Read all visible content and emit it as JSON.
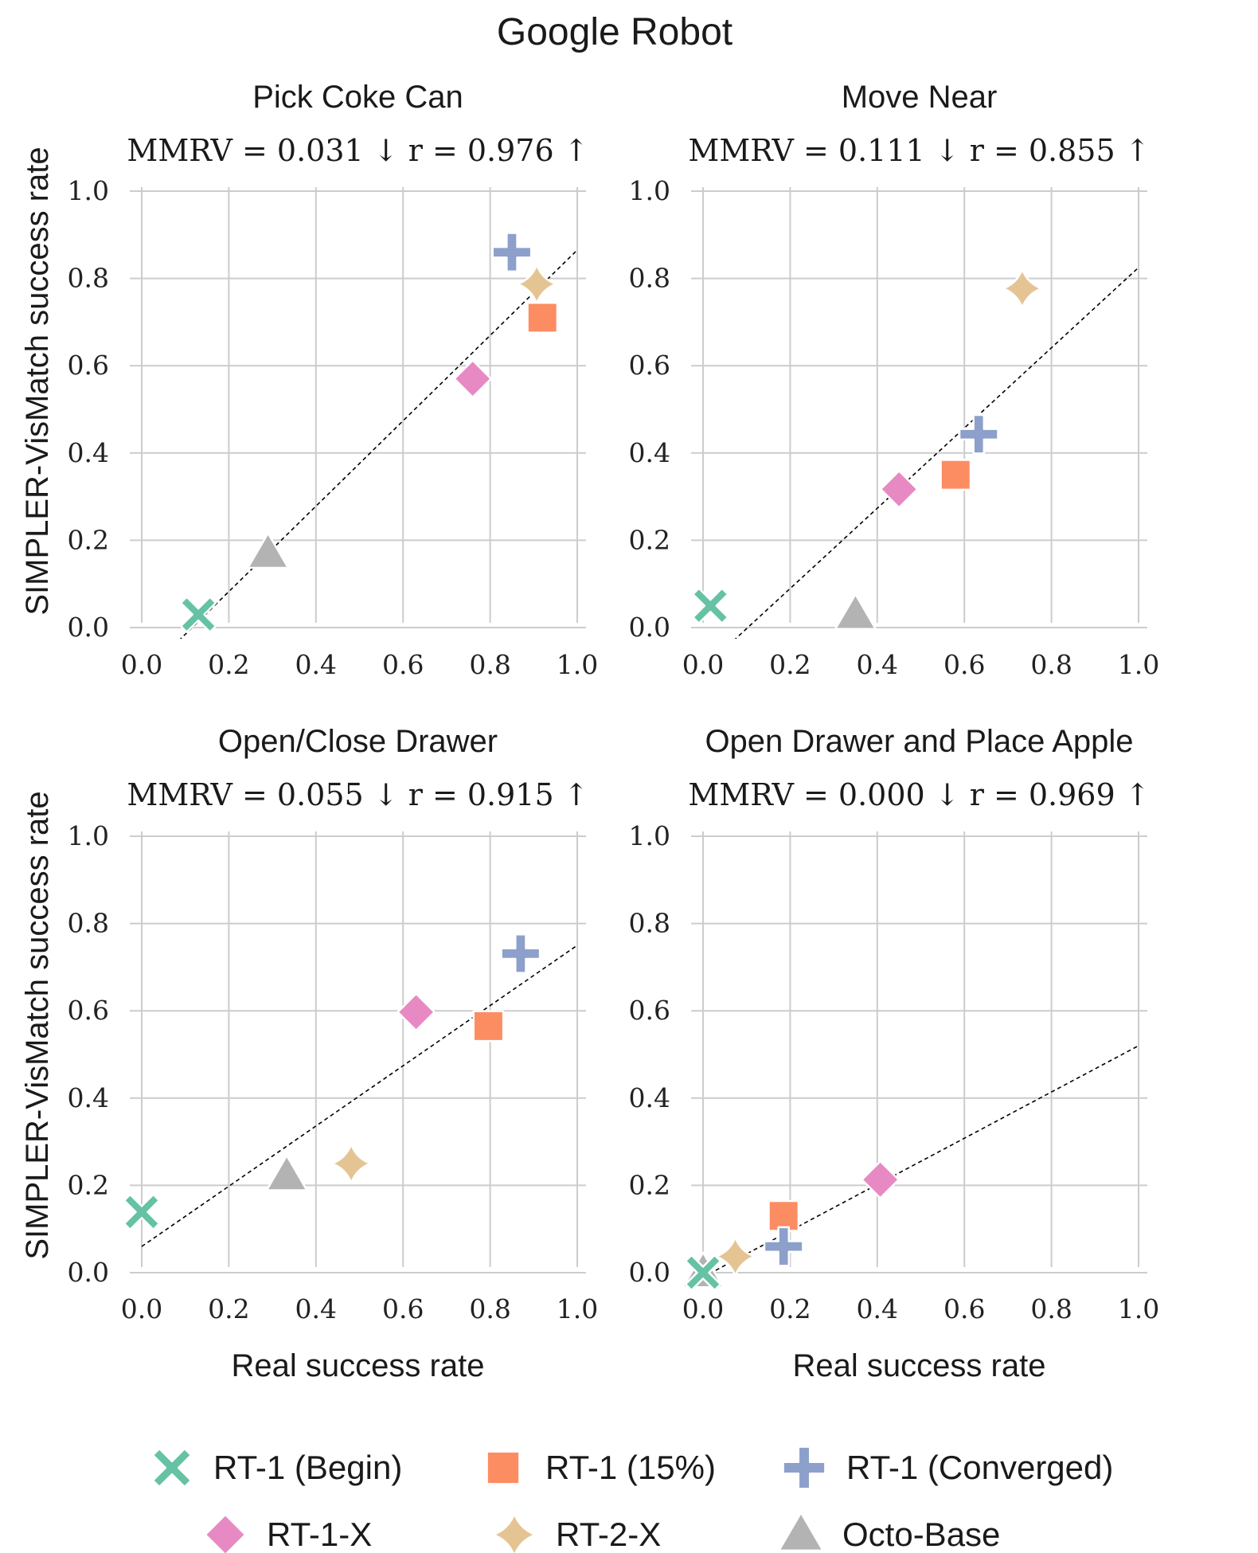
{
  "figure_title": "Google Robot",
  "colors": {
    "RT-1 (Begin)": "#66c2a5",
    "RT-1 (15%)": "#fc8d62",
    "RT-1 (Converged)": "#8da0cb",
    "RT-1-X": "#e78ac3",
    "RT-2-X": "#e5c494",
    "Octo-Base": "#b3b3b3",
    "grid": "#cccccc",
    "fit_line": "#000000"
  },
  "legend": {
    "placement": "bottom",
    "entries": [
      {
        "label": "RT-1 (Begin)",
        "marker": "x-icon"
      },
      {
        "label": "RT-1 (15%)",
        "marker": "square-icon"
      },
      {
        "label": "RT-1 (Converged)",
        "marker": "plus-icon"
      },
      {
        "label": "RT-1-X",
        "marker": "diamond-icon"
      },
      {
        "label": "RT-2-X",
        "marker": "star4-icon"
      },
      {
        "label": "Octo-Base",
        "marker": "triangle-icon"
      }
    ]
  },
  "chart_data": [
    {
      "type": "scatter",
      "title": "Pick Coke Can",
      "metrics": "MMRV = 0.031 ↓ r = 0.976 ↑",
      "xlabel": "",
      "ylabel": "SIMPLER-VisMatch success rate",
      "xlim": [
        0.0,
        1.0
      ],
      "ylim": [
        0.0,
        1.0
      ],
      "xticks": [
        "0.0",
        "0.2",
        "0.4",
        "0.6",
        "0.8",
        "1.0"
      ],
      "yticks": [
        "0.0",
        "0.2",
        "0.4",
        "0.6",
        "0.8",
        "1.0"
      ],
      "grid": true,
      "fit_line": {
        "x": [
          0.085,
          1.0
        ],
        "y": [
          -0.03,
          0.865
        ]
      },
      "points": [
        {
          "series": "RT-1 (Begin)",
          "x": 0.13,
          "y": 0.03
        },
        {
          "series": "RT-1 (15%)",
          "x": 0.92,
          "y": 0.71
        },
        {
          "series": "RT-1 (Converged)",
          "x": 0.85,
          "y": 0.86
        },
        {
          "series": "RT-1-X",
          "x": 0.76,
          "y": 0.57
        },
        {
          "series": "RT-2-X",
          "x": 0.907,
          "y": 0.787
        },
        {
          "series": "Octo-Base",
          "x": 0.29,
          "y": 0.17
        }
      ]
    },
    {
      "type": "scatter",
      "title": "Move Near",
      "metrics": "MMRV = 0.111 ↓ r = 0.855 ↑",
      "xlabel": "",
      "ylabel": "",
      "xlim": [
        0.0,
        1.0
      ],
      "ylim": [
        0.0,
        1.0
      ],
      "xticks": [
        "0.0",
        "0.2",
        "0.4",
        "0.6",
        "0.8",
        "1.0"
      ],
      "yticks": [
        "0.0",
        "0.2",
        "0.4",
        "0.6",
        "0.8",
        "1.0"
      ],
      "grid": true,
      "fit_line": {
        "x": [
          0.07,
          1.0
        ],
        "y": [
          -0.03,
          0.825
        ]
      },
      "points": [
        {
          "series": "RT-1 (Begin)",
          "x": 0.017,
          "y": 0.05
        },
        {
          "series": "RT-1 (15%)",
          "x": 0.58,
          "y": 0.35
        },
        {
          "series": "RT-1 (Converged)",
          "x": 0.633,
          "y": 0.443
        },
        {
          "series": "RT-1-X",
          "x": 0.45,
          "y": 0.317
        },
        {
          "series": "RT-2-X",
          "x": 0.733,
          "y": 0.777
        },
        {
          "series": "Octo-Base",
          "x": 0.35,
          "y": 0.03
        }
      ]
    },
    {
      "type": "scatter",
      "title": "Open/Close Drawer",
      "metrics": "MMRV = 0.055 ↓ r = 0.915 ↑",
      "xlabel": "Real success rate",
      "ylabel": "SIMPLER-VisMatch success rate",
      "xlim": [
        0.0,
        1.0
      ],
      "ylim": [
        0.0,
        1.0
      ],
      "xticks": [
        "0.0",
        "0.2",
        "0.4",
        "0.6",
        "0.8",
        "1.0"
      ],
      "yticks": [
        "0.0",
        "0.2",
        "0.4",
        "0.6",
        "0.8",
        "1.0"
      ],
      "grid": true,
      "fit_line": {
        "x": [
          0.0,
          1.0
        ],
        "y": [
          0.06,
          0.75
        ]
      },
      "points": [
        {
          "series": "RT-1 (Begin)",
          "x": 0.0,
          "y": 0.139
        },
        {
          "series": "RT-1 (15%)",
          "x": 0.796,
          "y": 0.565
        },
        {
          "series": "RT-1 (Converged)",
          "x": 0.87,
          "y": 0.731
        },
        {
          "series": "RT-1-X",
          "x": 0.63,
          "y": 0.597
        },
        {
          "series": "RT-2-X",
          "x": 0.481,
          "y": 0.25
        },
        {
          "series": "Octo-Base",
          "x": 0.333,
          "y": 0.222
        }
      ]
    },
    {
      "type": "scatter",
      "title": "Open Drawer and Place Apple",
      "metrics": "MMRV = 0.000 ↓ r = 0.969 ↑",
      "xlabel": "Real success rate",
      "ylabel": "",
      "xlim": [
        0.0,
        1.0
      ],
      "ylim": [
        0.0,
        1.0
      ],
      "xticks": [
        "0.0",
        "0.2",
        "0.4",
        "0.6",
        "0.8",
        "1.0"
      ],
      "yticks": [
        "0.0",
        "0.2",
        "0.4",
        "0.6",
        "0.8",
        "1.0"
      ],
      "grid": true,
      "fit_line": {
        "x": [
          0.0,
          1.0
        ],
        "y": [
          -0.01,
          0.52
        ]
      },
      "points": [
        {
          "series": "RT-1 (Begin)",
          "x": 0.0,
          "y": 0.0
        },
        {
          "series": "RT-1 (15%)",
          "x": 0.185,
          "y": 0.13
        },
        {
          "series": "RT-1 (Converged)",
          "x": 0.185,
          "y": 0.06
        },
        {
          "series": "RT-1-X",
          "x": 0.407,
          "y": 0.213
        },
        {
          "series": "RT-2-X",
          "x": 0.074,
          "y": 0.037
        },
        {
          "series": "Octo-Base",
          "x": 0.0,
          "y": 0.0
        }
      ]
    }
  ]
}
